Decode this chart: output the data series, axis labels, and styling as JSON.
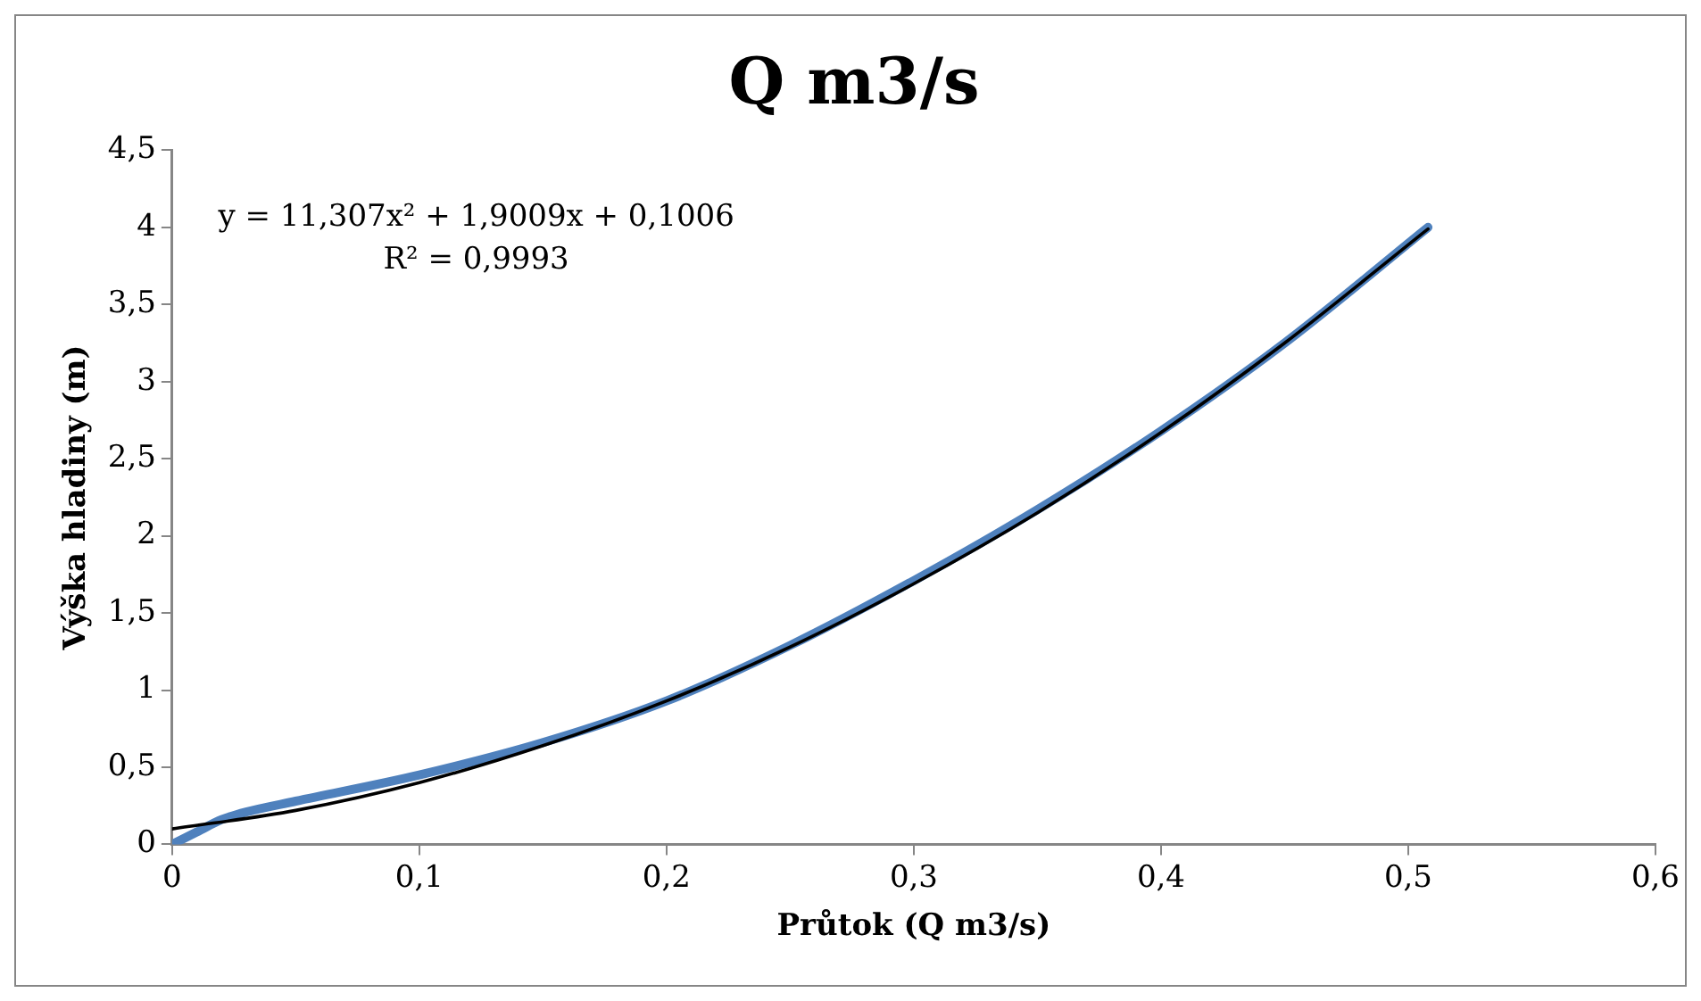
{
  "chart_data": {
    "type": "line",
    "title": "Q m3/s",
    "xlabel": "Průtok (Q m3/s)",
    "ylabel": "Výška hladiny (m)",
    "annotations": [
      "y = 11,307x² + 1,9009x + 0,1006",
      "R² = 0,9993"
    ],
    "series": [
      {
        "color": "#4f81bd",
        "x": [
          0,
          0.01,
          0.02,
          0.03,
          0.05,
          0.1,
          0.15,
          0.2,
          0.25,
          0.3,
          0.35,
          0.4,
          0.45,
          0.508
        ],
        "values": [
          0,
          0.08,
          0.16,
          0.21,
          0.28,
          0.45,
          0.66,
          0.93,
          1.29,
          1.71,
          2.17,
          2.68,
          3.25,
          4.0
        ]
      },
      {
        "type": "line",
        "color": "#000000",
        "x": [
          0,
          0.05,
          0.1,
          0.15,
          0.2,
          0.25,
          0.3,
          0.35,
          0.4,
          0.45,
          0.508
        ],
        "values": [
          0.1,
          0.22,
          0.4,
          0.64,
          0.93,
          1.28,
          1.69,
          2.15,
          2.67,
          3.25,
          3.99
        ]
      }
    ],
    "xlim": [
      0,
      0.6
    ],
    "xticks": [
      0,
      {
        "value": 0.1,
        "label": "0,1"
      },
      {
        "value": 0.2,
        "label": "0,2"
      },
      {
        "value": 0.3,
        "label": "0,3"
      },
      {
        "value": 0.4,
        "label": "0,4"
      },
      {
        "value": 0.5,
        "label": "0,5"
      },
      {
        "value": 0.6,
        "label": "0,6"
      }
    ],
    "ylim": [
      0,
      4.5
    ],
    "yticks": [
      0,
      {
        "value": 0.5,
        "label": "0,5"
      },
      1,
      {
        "value": 1.5,
        "label": "1,5"
      },
      2,
      {
        "value": 2.5,
        "label": "2,5"
      },
      3,
      {
        "value": 3.5,
        "label": "3,5"
      },
      4,
      {
        "value": 4.5,
        "label": "4,5"
      }
    ],
    "grid": false,
    "legend": false,
    "marker": "none",
    "line_style": "solid"
  }
}
